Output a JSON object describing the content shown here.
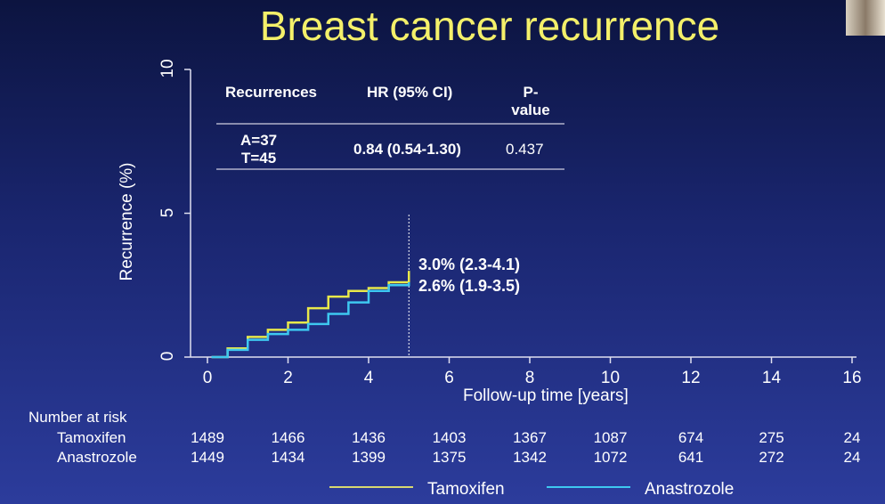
{
  "thumbnail": "presenter-video-thumbnail",
  "chart_data": {
    "type": "line",
    "title": "Breast cancer recurrence",
    "xlabel": "Follow-up time [years]",
    "ylabel": "Recurrence (%)",
    "xlim": [
      0,
      16
    ],
    "ylim": [
      0,
      10
    ],
    "xticks": [
      "0",
      "2",
      "4",
      "6",
      "8",
      "10",
      "12",
      "14",
      "16"
    ],
    "yticks": [
      "0",
      "5",
      "10"
    ],
    "grid": false,
    "legend_position": "bottom",
    "cutoff_year": 5,
    "series": [
      {
        "name": "Tamoxifen",
        "color": "#e8e84a",
        "x": [
          0.1,
          0.5,
          1,
          1.5,
          2,
          2.5,
          3,
          3.5,
          4,
          4.5,
          5
        ],
        "y": [
          0,
          0.3,
          0.7,
          0.95,
          1.2,
          1.7,
          2.1,
          2.3,
          2.4,
          2.6,
          3.0
        ],
        "annotation": "3.0% (2.3-4.1)"
      },
      {
        "name": "Anastrozole",
        "color": "#3ec8f0",
        "x": [
          0.1,
          0.5,
          1,
          1.5,
          2,
          2.5,
          3,
          3.5,
          4,
          4.5,
          5
        ],
        "y": [
          0,
          0.25,
          0.6,
          0.8,
          0.95,
          1.15,
          1.5,
          1.9,
          2.3,
          2.5,
          2.6
        ],
        "annotation": "2.6% (1.9-3.5)"
      }
    ],
    "table": {
      "headers": [
        "Recurrences",
        "HR (95% CI)",
        "P-value"
      ],
      "row": [
        "A=37\nT=45",
        "0.84 (0.54-1.30)",
        "0.437"
      ]
    },
    "risk_table": {
      "label": "Number at risk",
      "times": [
        0,
        2,
        4,
        6,
        8,
        10,
        12,
        14,
        16
      ],
      "rows": [
        {
          "name": "Tamoxifen",
          "values": [
            "1489",
            "1466",
            "1436",
            "1403",
            "1367",
            "1087",
            "674",
            "275",
            "24"
          ]
        },
        {
          "name": "Anastrozole",
          "values": [
            "1449",
            "1434",
            "1399",
            "1375",
            "1342",
            "1072",
            "641",
            "272",
            "24"
          ]
        }
      ]
    }
  }
}
